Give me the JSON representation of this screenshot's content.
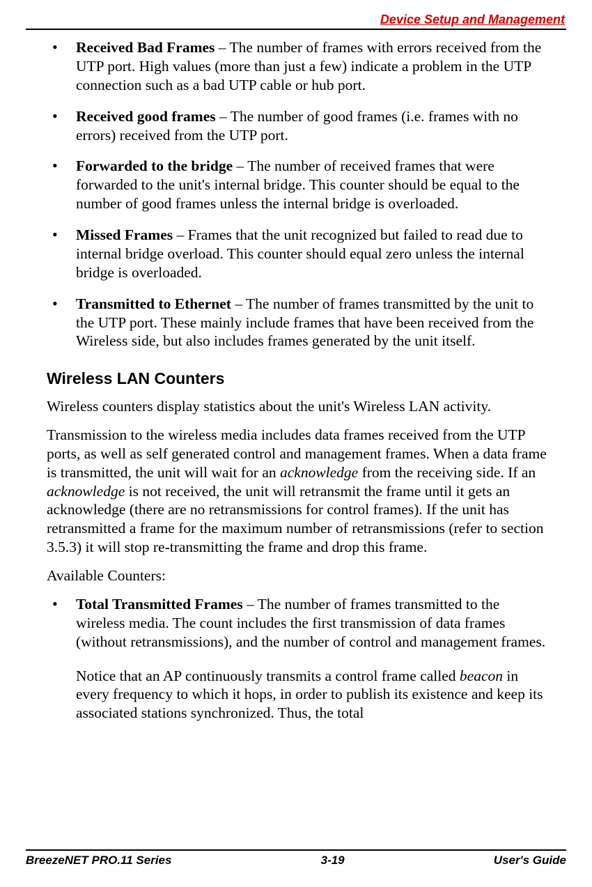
{
  "header": {
    "title": "Device Setup and Management"
  },
  "ethernet_bullets": [
    {
      "term": "Received Bad Frames",
      "text": " – The number of frames with errors received from the UTP port. High values (more than just a few) indicate a problem in the UTP connection such as a bad UTP cable or hub port."
    },
    {
      "term": "Received good frames",
      "text": " – The number of  good frames (i.e. frames with no errors) received from the UTP port."
    },
    {
      "term": "Forwarded to the bridge",
      "text": " – The number of received frames that were forwarded to the unit's internal bridge. This counter should be equal to the number of good frames unless the internal bridge is overloaded."
    },
    {
      "term": "Missed Frames",
      "text": " – Frames that the unit recognized but failed to read due to internal bridge overload. This counter should equal zero unless the internal bridge is overloaded."
    },
    {
      "term": "Transmitted to Ethernet",
      "text": " – The number of frames transmitted by the unit to the UTP port. These mainly include frames that have been received from the Wireless side, but also includes frames generated by the unit itself."
    }
  ],
  "section": {
    "heading": "Wireless LAN Counters",
    "p1": "Wireless counters display statistics about the unit's Wireless LAN activity.",
    "p2_a": "Transmission to the wireless media includes data frames received from the UTP ports, as well as self generated control and management frames. When a data frame is transmitted, the unit will wait for an ",
    "p2_i1": "acknowledge",
    "p2_b": " from the receiving side. If an ",
    "p2_i2": "acknowledge",
    "p2_c": " is not received, the unit will retransmit the frame until it gets an acknowledge (there are no retransmissions for control frames). If the unit has retransmitted a frame for the maximum number of retransmissions (refer to section 3.5.3) it will stop re-transmitting the frame and drop this frame.",
    "p3": "Available Counters:"
  },
  "wlan_bullets": [
    {
      "term": "Total Transmitted Frames",
      "text": " – The number of frames transmitted to the wireless media. The count includes the first transmission of data frames (without retransmissions), and the number of control and management frames."
    }
  ],
  "note": {
    "a": "Notice that an AP continuously transmits a control frame called ",
    "i": "beacon",
    "b": " in every frequency to which it hops, in order to publish its existence and keep its associated stations synchronized. Thus, the total"
  },
  "footer": {
    "left": "BreezeNET PRO.11 Series",
    "center": "3-19",
    "right": "User's Guide"
  }
}
